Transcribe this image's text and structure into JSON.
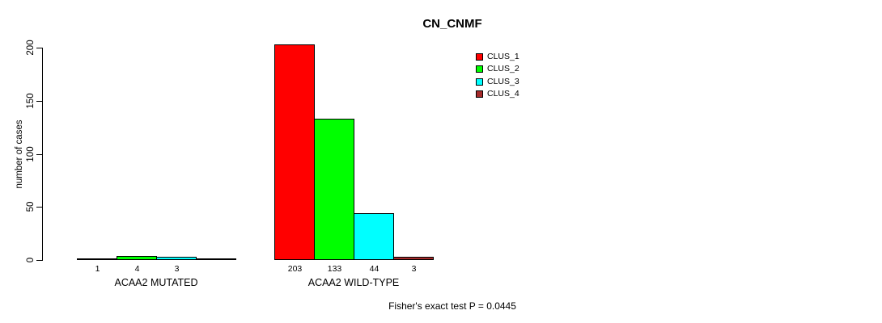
{
  "title": "CN_CNMF",
  "chart_data": {
    "type": "bar",
    "title": "CN_CNMF",
    "xlabel": "",
    "ylabel": "number of cases",
    "ylim": [
      0,
      200
    ],
    "yticks": [
      0,
      50,
      100,
      150,
      200
    ],
    "grid": false,
    "legend_position": "top-right",
    "series": [
      {
        "name": "CLUS_1",
        "color": "#FF0000"
      },
      {
        "name": "CLUS_2",
        "color": "#00FF00"
      },
      {
        "name": "CLUS_3",
        "color": "#00FFFF"
      },
      {
        "name": "CLUS_4",
        "color": "#A52A2A"
      }
    ],
    "groups": [
      {
        "label": "ACAA2 MUTATED",
        "values": [
          1,
          4,
          3,
          0
        ],
        "value_labels": [
          "1",
          "4",
          "3",
          ""
        ]
      },
      {
        "label": "ACAA2 WILD-TYPE",
        "values": [
          203,
          133,
          44,
          3
        ],
        "value_labels": [
          "203",
          "133",
          "44",
          "3"
        ]
      }
    ],
    "annotation": "Fisher's exact test P = 0.0445"
  }
}
